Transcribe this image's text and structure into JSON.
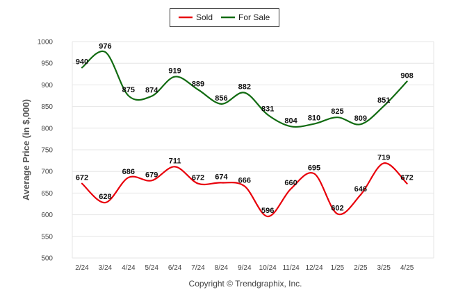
{
  "chart_data": {
    "type": "line",
    "ylabel": "Average Price (in $,000)",
    "xlabel": "",
    "ylim": [
      500,
      1000
    ],
    "yticks": [
      500,
      550,
      600,
      650,
      700,
      750,
      800,
      850,
      900,
      950,
      1000
    ],
    "grid": true,
    "legend_position": "top-center",
    "categories": [
      "2/24",
      "3/24",
      "4/24",
      "5/24",
      "6/24",
      "7/24",
      "8/24",
      "9/24",
      "10/24",
      "11/24",
      "12/24",
      "1/25",
      "2/25",
      "3/25",
      "4/25"
    ],
    "series": [
      {
        "name": "Sold",
        "color": "#e8000b",
        "values": [
          672,
          628,
          686,
          679,
          711,
          672,
          674,
          666,
          596,
          660,
          695,
          602,
          646,
          719,
          672
        ]
      },
      {
        "name": "For Sale",
        "color": "#116b11",
        "values": [
          940,
          976,
          875,
          874,
          919,
          889,
          856,
          882,
          831,
          804,
          810,
          825,
          809,
          851,
          908
        ]
      }
    ],
    "footer": "Copyright © Trendgraphix, Inc."
  }
}
